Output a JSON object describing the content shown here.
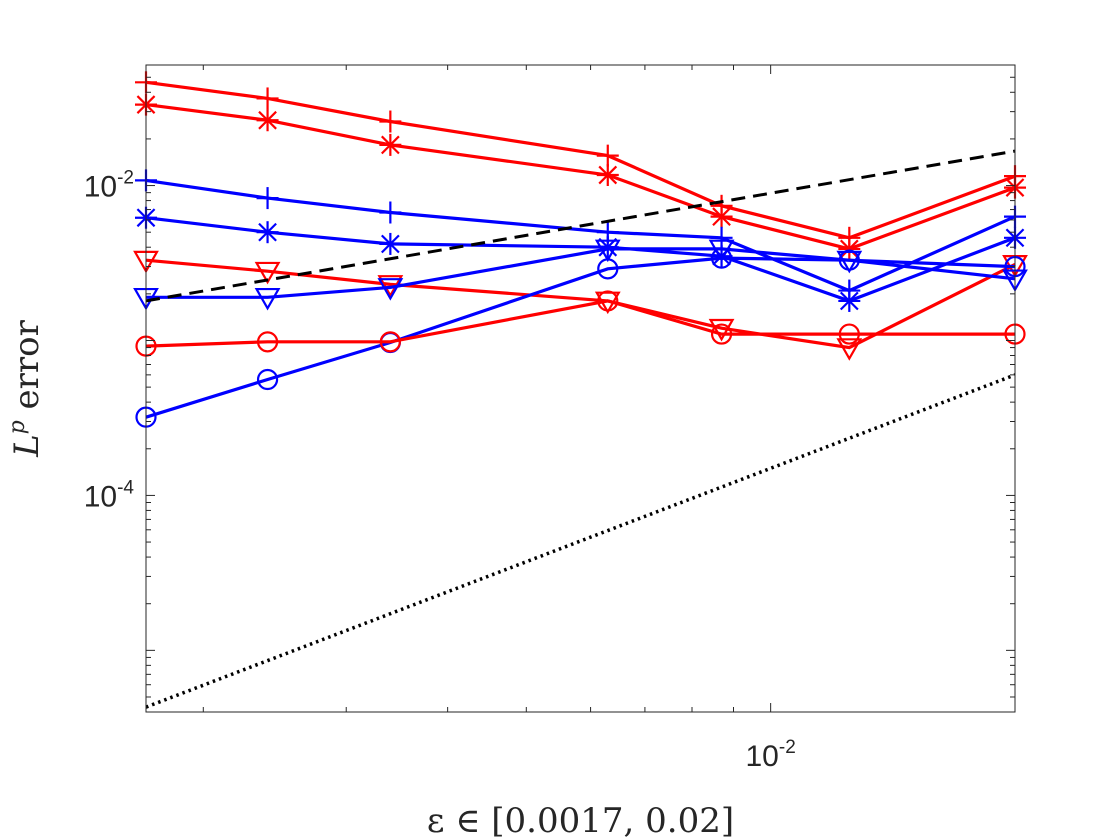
{
  "chart_data": {
    "type": "line",
    "title": "",
    "xlabel": "ε ∈ [0.0017, 0.02]",
    "ylabel_base": "L",
    "ylabel_sup": "p",
    "ylabel_rest": " error",
    "xscale": "log",
    "yscale": "log",
    "xlim": [
      0.0017,
      0.02
    ],
    "ylim": [
      4e-06,
      0.06
    ],
    "grid": false,
    "legend": "none",
    "x_ticks": [
      {
        "value": 0.01,
        "base": "10",
        "exp": "-2"
      }
    ],
    "y_ticks": [
      {
        "value": 0.0001,
        "base": "10",
        "exp": "-4"
      },
      {
        "value": 0.01,
        "base": "10",
        "exp": "-2"
      }
    ],
    "colors": {
      "red": "#ff0000",
      "blue": "#0000ff",
      "black": "#000000",
      "axis": "#262626"
    },
    "series": [
      {
        "color": "red",
        "marker": "plus",
        "style": "solid",
        "x": [
          0.0017,
          0.0024,
          0.0034,
          0.0063,
          0.0087,
          0.0125,
          0.02
        ],
        "y": [
          0.0464,
          0.0365,
          0.0259,
          0.0156,
          0.0074,
          0.0046,
          0.0115
        ]
      },
      {
        "color": "red",
        "marker": "star",
        "style": "solid",
        "x": [
          0.0017,
          0.0024,
          0.0034,
          0.0063,
          0.0087,
          0.0125,
          0.02
        ],
        "y": [
          0.0333,
          0.0264,
          0.0183,
          0.0117,
          0.0063,
          0.0039,
          0.0097
        ]
      },
      {
        "color": "blue",
        "marker": "plus",
        "style": "solid",
        "x": [
          0.0017,
          0.0024,
          0.0034,
          0.0063,
          0.0087,
          0.0125,
          0.02
        ],
        "y": [
          0.0108,
          0.0083,
          0.0067,
          0.005,
          0.0046,
          0.0021,
          0.0063
        ]
      },
      {
        "color": "blue",
        "marker": "star",
        "style": "solid",
        "x": [
          0.0017,
          0.0024,
          0.0034,
          0.0063,
          0.0087,
          0.0125,
          0.02
        ],
        "y": [
          0.0062,
          0.005,
          0.0042,
          0.004,
          0.0035,
          0.0018,
          0.0046
        ]
      },
      {
        "color": "red",
        "marker": "triangle",
        "style": "solid",
        "x": [
          0.0017,
          0.0024,
          0.0034,
          0.0063,
          0.0087,
          0.0125,
          0.02
        ],
        "y": [
          0.0033,
          0.0028,
          0.0023,
          0.0018,
          0.0012,
          0.0009,
          0.0031
        ]
      },
      {
        "color": "blue",
        "marker": "triangle",
        "style": "solid",
        "x": [
          0.0017,
          0.0024,
          0.0034,
          0.0063,
          0.0087,
          0.0125,
          0.02
        ],
        "y": [
          0.0019,
          0.0019,
          0.0022,
          0.0039,
          0.0039,
          0.0033,
          0.0025
        ]
      },
      {
        "color": "blue",
        "marker": "circle",
        "style": "solid",
        "x": [
          0.0017,
          0.0024,
          0.0034,
          0.0063,
          0.0087,
          0.0125,
          0.02
        ],
        "y": [
          0.00032,
          0.00056,
          0.00097,
          0.0029,
          0.0034,
          0.0033,
          0.003
        ]
      },
      {
        "color": "red",
        "marker": "circle",
        "style": "solid",
        "x": [
          0.0017,
          0.0024,
          0.0034,
          0.0063,
          0.0087,
          0.0125,
          0.02
        ],
        "y": [
          0.00092,
          0.00098,
          0.00098,
          0.0018,
          0.0011,
          0.0011,
          0.0011
        ]
      },
      {
        "color": "black",
        "marker": "none",
        "style": "dashed",
        "x": [
          0.0017,
          0.02
        ],
        "y": [
          0.0018,
          0.0167
        ]
      },
      {
        "color": "black",
        "marker": "none",
        "style": "dotted",
        "x": [
          0.0017,
          0.02
        ],
        "y": [
          4.3e-06,
          0.0006
        ]
      }
    ]
  }
}
